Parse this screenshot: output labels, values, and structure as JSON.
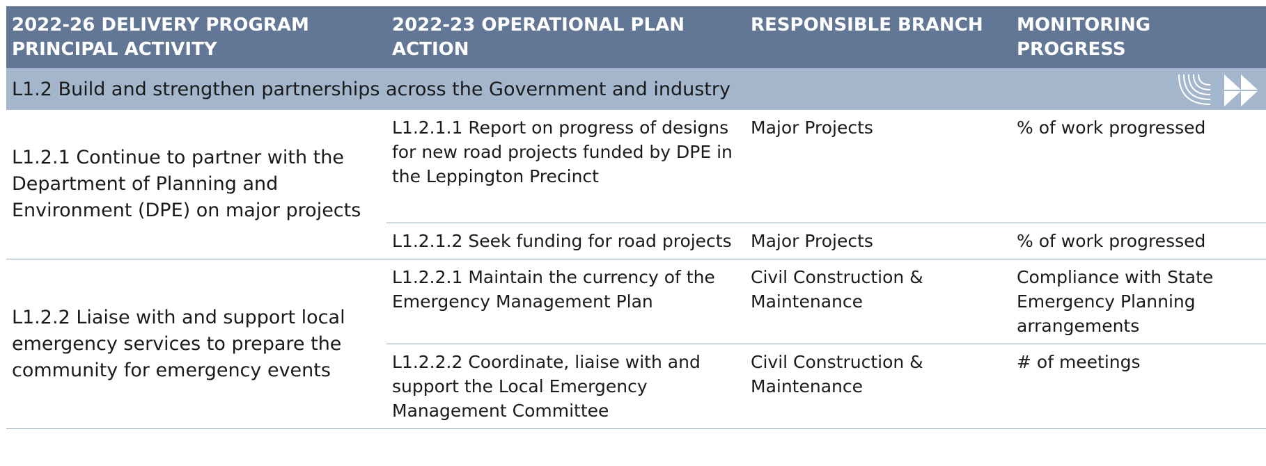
{
  "header": {
    "columns": [
      "2022-26 DELIVERY PROGRAM PRINCIPAL ACTIVITY",
      "2022-23 OPERATIONAL PLAN ACTION",
      "RESPONSIBLE BRANCH",
      "MONITORING PROGRESS"
    ]
  },
  "section": {
    "title": "L1.2 Build and strengthen partnerships across the Government and industry"
  },
  "groups": [
    {
      "activity": "L1.2.1 Continue to partner with the Department of Planning and Environment (DPE) on major projects",
      "actions": [
        {
          "action": "L1.2.1.1 Report on progress of designs for new road projects funded by DPE in the Leppington Precinct",
          "branch": "Major Projects",
          "measure": "% of work progressed"
        },
        {
          "action": "L1.2.1.2 Seek funding for road projects",
          "branch": "Major Projects",
          "measure": "% of work progressed"
        }
      ]
    },
    {
      "activity": "L1.2.2 Liaise with and support local emergency services to prepare the community for emergency events",
      "actions": [
        {
          "action": "L1.2.2.1 Maintain the currency of the Emergency Management Plan",
          "branch": "Civil Construction & Maintenance",
          "measure": "Compliance with State Emergency Planning arrangements"
        },
        {
          "action": "L1.2.2.2 Coordinate, liaise with and support the Local Emergency Management Committee",
          "branch": "Civil Construction & Maintenance",
          "measure": "# of meetings"
        }
      ]
    }
  ]
}
